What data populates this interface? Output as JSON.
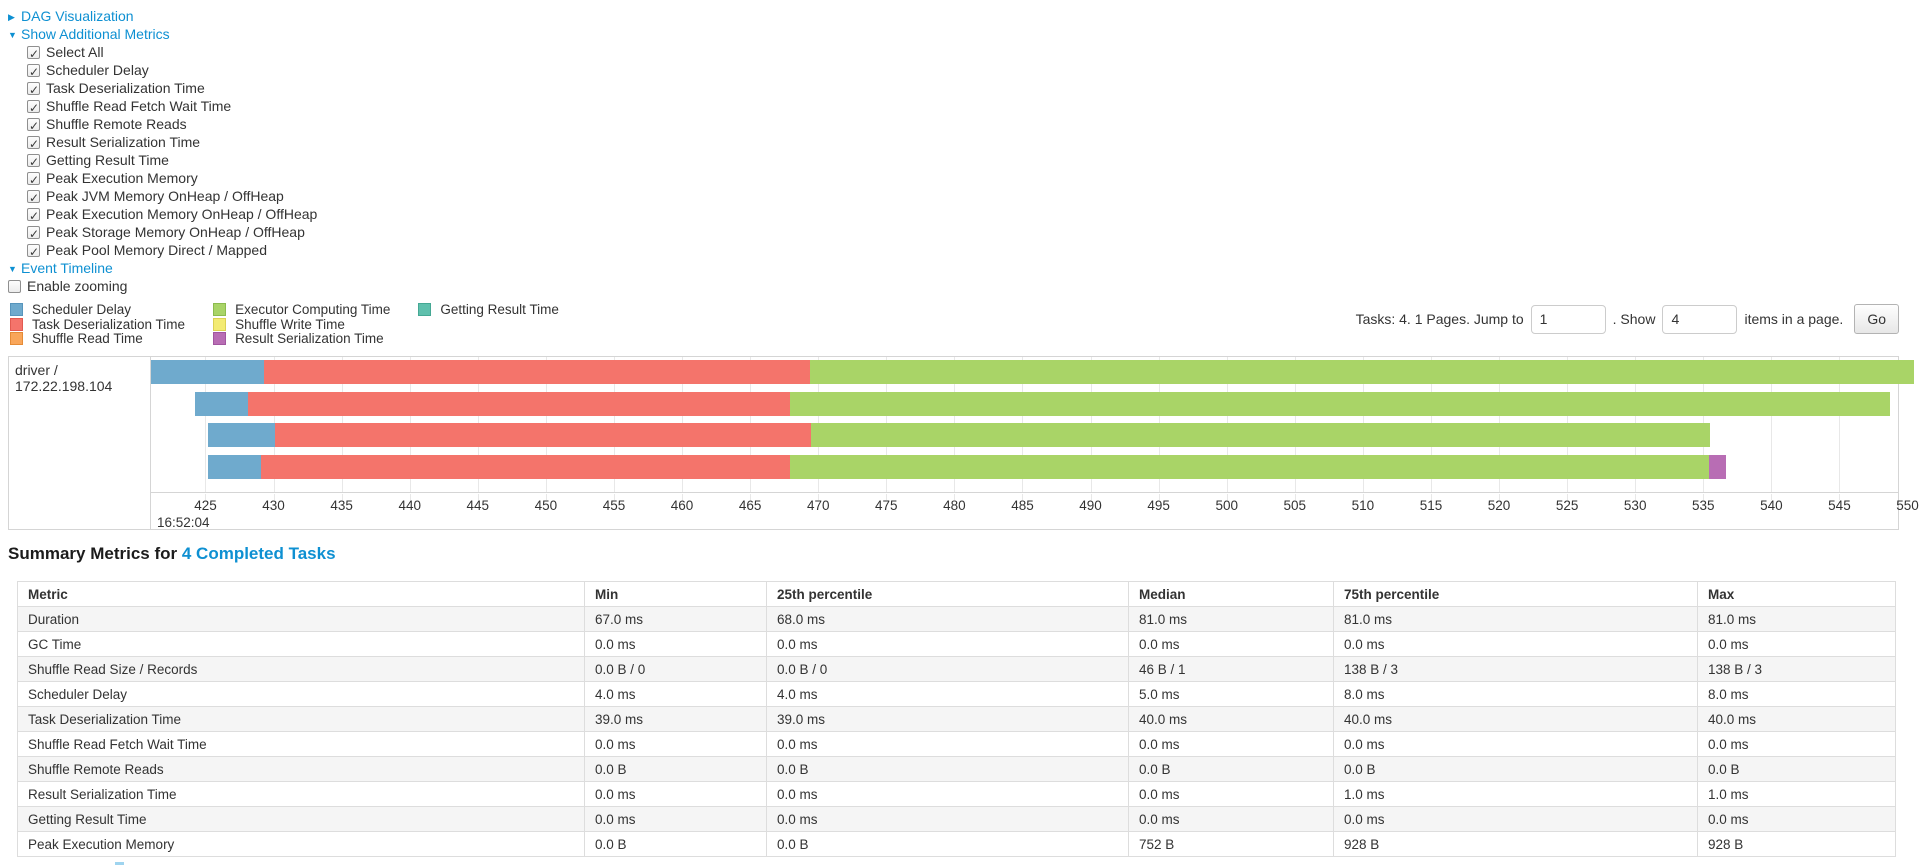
{
  "controls": {
    "dag": {
      "label": "DAG Visualization",
      "arrow": "▶"
    },
    "metrics": {
      "label": "Show Additional Metrics",
      "arrow": "▼"
    },
    "timeline": {
      "label": "Event Timeline",
      "arrow": "▼"
    },
    "enable_zooming": {
      "label": "Enable zooming",
      "checked": false
    },
    "metric_checkboxes": [
      {
        "label": "Select All",
        "checked": true
      },
      {
        "label": "Scheduler Delay",
        "checked": true
      },
      {
        "label": "Task Deserialization Time",
        "checked": true
      },
      {
        "label": "Shuffle Read Fetch Wait Time",
        "checked": true
      },
      {
        "label": "Shuffle Remote Reads",
        "checked": true
      },
      {
        "label": "Result Serialization Time",
        "checked": true
      },
      {
        "label": "Getting Result Time",
        "checked": true
      },
      {
        "label": "Peak Execution Memory",
        "checked": true
      },
      {
        "label": "Peak JVM Memory OnHeap / OffHeap",
        "checked": true
      },
      {
        "label": "Peak Execution Memory OnHeap / OffHeap",
        "checked": true
      },
      {
        "label": "Peak Storage Memory OnHeap / OffHeap",
        "checked": true
      },
      {
        "label": "Peak Pool Memory Direct / Mapped",
        "checked": true
      }
    ]
  },
  "pagination": {
    "prefix": "Tasks: 4. 1 Pages. Jump to",
    "page_value": "1",
    "mid": ". Show",
    "size_value": "4",
    "suffix": "items in a page.",
    "go_label": "Go"
  },
  "chart_data": {
    "type": "timeline",
    "executor_label": "driver / 172.22.198.104",
    "categories": {
      "scheduler_delay": {
        "label": "Scheduler Delay",
        "fill": "#6FAACD",
        "border": "#5795BC"
      },
      "task_deserialization": {
        "label": "Task Deserialization Time",
        "fill": "#F4746B",
        "border": "#E25A50"
      },
      "shuffle_read": {
        "label": "Shuffle Read Time",
        "fill": "#F9A65A",
        "border": "#E58B36"
      },
      "executor_computing": {
        "label": "Executor Computing Time",
        "fill": "#A9D467",
        "border": "#8CBB4E"
      },
      "shuffle_write": {
        "label": "Shuffle Write Time",
        "fill": "#F3EB72",
        "border": "#DBD154"
      },
      "result_serialization": {
        "label": "Result Serialization Time",
        "fill": "#B86DB4",
        "border": "#A156A0"
      },
      "getting_result": {
        "label": "Getting Result Time",
        "fill": "#5FC0AD",
        "border": "#45A894"
      }
    },
    "legend_columns": [
      [
        "scheduler_delay",
        "task_deserialization",
        "shuffle_read"
      ],
      [
        "executor_computing",
        "shuffle_write",
        "result_serialization"
      ],
      [
        "getting_result"
      ]
    ],
    "axis": {
      "min": 421.0,
      "max": 549.3,
      "ticks": [
        425,
        430,
        435,
        440,
        445,
        450,
        455,
        460,
        465,
        470,
        475,
        480,
        485,
        490,
        495,
        500,
        505,
        510,
        515,
        520,
        525,
        530,
        535,
        540,
        545,
        550
      ],
      "major_label": "16:52:04"
    },
    "tasks": [
      {
        "segments": [
          [
            "scheduler_delay",
            421.0,
            429.3
          ],
          [
            "task_deserialization",
            429.3,
            469.4
          ],
          [
            "executor_computing",
            469.4,
            550.5
          ]
        ]
      },
      {
        "segments": [
          [
            "scheduler_delay",
            424.2,
            428.1
          ],
          [
            "task_deserialization",
            428.1,
            467.9
          ],
          [
            "executor_computing",
            467.9,
            548.7
          ]
        ]
      },
      {
        "segments": [
          [
            "scheduler_delay",
            425.2,
            430.1
          ],
          [
            "task_deserialization",
            430.1,
            469.5
          ],
          [
            "executor_computing",
            469.5,
            535.5
          ]
        ]
      },
      {
        "segments": [
          [
            "scheduler_delay",
            425.2,
            429.1
          ],
          [
            "task_deserialization",
            429.1,
            467.9
          ],
          [
            "executor_computing",
            467.9,
            535.4
          ],
          [
            "result_serialization",
            535.4,
            536.7
          ]
        ]
      }
    ]
  },
  "summary": {
    "title_prefix": "Summary Metrics for",
    "title_link": "4 Completed Tasks",
    "table": {
      "headers": [
        "Metric",
        "Min",
        "25th percentile",
        "Median",
        "75th percentile",
        "Max"
      ],
      "rows": [
        {
          "metric": "Duration",
          "values": [
            "67.0 ms",
            "68.0 ms",
            "81.0 ms",
            "81.0 ms",
            "81.0 ms"
          ]
        },
        {
          "metric": "GC Time",
          "values": [
            "0.0 ms",
            "0.0 ms",
            "0.0 ms",
            "0.0 ms",
            "0.0 ms"
          ]
        },
        {
          "metric": "Shuffle Read Size / Records",
          "values": [
            "0.0 B / 0",
            "0.0 B / 0",
            "46 B / 1",
            "138 B / 3",
            "138 B / 3"
          ]
        },
        {
          "metric": "Scheduler Delay",
          "values": [
            "4.0 ms",
            "4.0 ms",
            "5.0 ms",
            "8.0 ms",
            "8.0 ms"
          ]
        },
        {
          "metric": "Task Deserialization Time",
          "values": [
            "39.0 ms",
            "39.0 ms",
            "40.0 ms",
            "40.0 ms",
            "40.0 ms"
          ]
        },
        {
          "metric": "Shuffle Read Fetch Wait Time",
          "values": [
            "0.0 ms",
            "0.0 ms",
            "0.0 ms",
            "0.0 ms",
            "0.0 ms"
          ]
        },
        {
          "metric": "Shuffle Remote Reads",
          "values": [
            "0.0 B",
            "0.0 B",
            "0.0 B",
            "0.0 B",
            "0.0 B"
          ]
        },
        {
          "metric": "Result Serialization Time",
          "values": [
            "0.0 ms",
            "0.0 ms",
            "0.0 ms",
            "1.0 ms",
            "1.0 ms"
          ]
        },
        {
          "metric": "Getting Result Time",
          "values": [
            "0.0 ms",
            "0.0 ms",
            "0.0 ms",
            "0.0 ms",
            "0.0 ms"
          ]
        },
        {
          "metric": "Peak Execution Memory",
          "values": [
            "0.0 B",
            "0.0 B",
            "752 B",
            "928 B",
            "928 B"
          ]
        }
      ]
    }
  }
}
